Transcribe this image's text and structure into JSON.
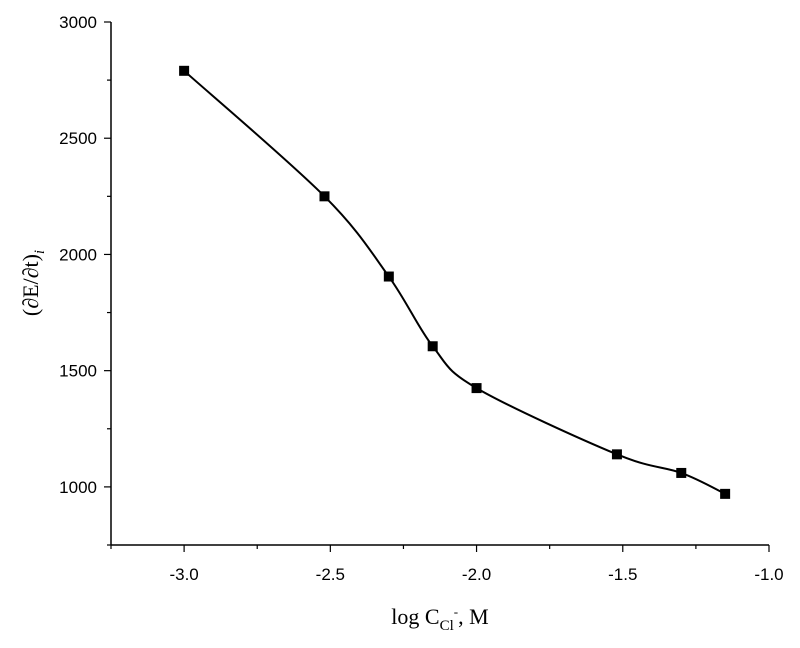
{
  "chart_data": {
    "type": "line",
    "title": "",
    "xlabel": {
      "main": "log C",
      "subscript": "Cl",
      "superscript": "-",
      "suffix": ", M"
    },
    "ylabel": {
      "main": "(∂E/∂t)",
      "subscript": "i"
    },
    "xlim": [
      -3.25,
      -1.0
    ],
    "ylim": [
      750,
      3000
    ],
    "x_ticks": [
      -3.0,
      -2.5,
      -2.0,
      -1.5,
      -1.0
    ],
    "x_tick_labels": [
      "-3.0",
      "-2.5",
      "-2.0",
      "-1.5",
      "-1.0"
    ],
    "y_ticks": [
      1000,
      1500,
      2000,
      2500,
      3000
    ],
    "y_tick_labels": [
      "1000",
      "1500",
      "2000",
      "2500",
      "3000"
    ],
    "grid": false,
    "legend": "none",
    "marker": "square",
    "line_style": "smooth",
    "color": "#000000",
    "series": [
      {
        "x": [
          -3.0,
          -2.52,
          -2.3,
          -2.15,
          -2.0,
          -1.52,
          -1.3,
          -1.15
        ],
        "y": [
          2790,
          2250,
          1905,
          1605,
          1425,
          1140,
          1060,
          970
        ]
      }
    ]
  }
}
